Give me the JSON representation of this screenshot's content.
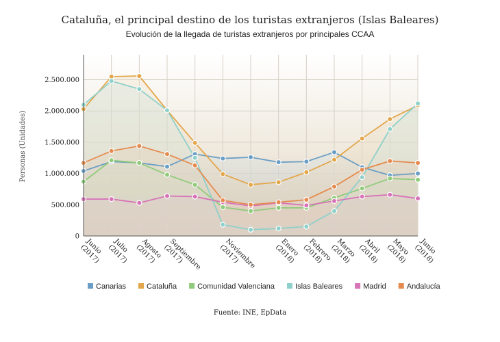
{
  "chart_data": {
    "type": "area",
    "title": "Cataluña, el principal destino de los turistas extranjeros (Islas Baleares)",
    "subtitle": "Evolución de la llegada de turistas extranjeros por principales CCAA",
    "ylabel": "Personas (Unidades)",
    "source": "Fuente: INE, EpData",
    "ylim": [
      0,
      2900000
    ],
    "yticks": [
      0,
      500000,
      1000000,
      1500000,
      2000000,
      2500000
    ],
    "ytick_labels": [
      "0",
      "500.000",
      "1.000.000",
      "1.500.000",
      "2.000.000",
      "2.500.000"
    ],
    "grid": true,
    "legend_position": "bottom",
    "x_count": 13,
    "x_tick_labels": [
      {
        "index": 0,
        "lines": [
          "Junio",
          "(2017)"
        ]
      },
      {
        "index": 1,
        "lines": [
          "Julio",
          "(2017)"
        ]
      },
      {
        "index": 2,
        "lines": [
          "Agosto",
          "(2017)"
        ]
      },
      {
        "index": 3,
        "lines": [
          "Septiembre",
          "(2017)"
        ]
      },
      {
        "index": 5,
        "lines": [
          "Noviembre",
          "(2017)"
        ]
      },
      {
        "index": 7,
        "lines": [
          "Enero",
          "(2018)"
        ]
      },
      {
        "index": 8,
        "lines": [
          "Febrero",
          "(2018)"
        ]
      },
      {
        "index": 9,
        "lines": [
          "Marzo",
          "(2018)"
        ]
      },
      {
        "index": 10,
        "lines": [
          "Abril",
          "(2018)"
        ]
      },
      {
        "index": 11,
        "lines": [
          "Mayo",
          "(2018)"
        ]
      },
      {
        "index": 12,
        "lines": [
          "Junio",
          "(2018)"
        ]
      }
    ],
    "series": [
      {
        "name": "Canarias",
        "color": "#6a9ec5",
        "fill": "#cfe1ee",
        "values": [
          1040000,
          1190000,
          1170000,
          1110000,
          1310000,
          1240000,
          1260000,
          1180000,
          1190000,
          1340000,
          1100000,
          970000,
          1000000
        ]
      },
      {
        "name": "Cataluña",
        "color": "#e3a64a",
        "fill": "#eddcbc",
        "values": [
          2030000,
          2550000,
          2560000,
          2010000,
          1490000,
          990000,
          820000,
          860000,
          1020000,
          1220000,
          1560000,
          1870000,
          2090000
        ]
      },
      {
        "name": "Comunidad Valenciana",
        "color": "#8fcb7a",
        "fill": "#d3e6c4",
        "values": [
          870000,
          1210000,
          1170000,
          980000,
          820000,
          460000,
          400000,
          450000,
          450000,
          610000,
          760000,
          920000,
          900000
        ]
      },
      {
        "name": "Islas Baleares",
        "color": "#8fd0ca",
        "fill": "#c9e3de",
        "values": [
          2100000,
          2480000,
          2350000,
          2010000,
          1250000,
          180000,
          100000,
          120000,
          150000,
          400000,
          940000,
          1710000,
          2120000
        ]
      },
      {
        "name": "Madrid",
        "color": "#d774b8",
        "fill": "#e7c6d8",
        "values": [
          590000,
          590000,
          530000,
          640000,
          630000,
          540000,
          480000,
          530000,
          490000,
          560000,
          630000,
          660000,
          600000
        ]
      },
      {
        "name": "Andalucía",
        "color": "#e68b4f",
        "fill": "#e9cbb3",
        "values": [
          1170000,
          1360000,
          1440000,
          1310000,
          1130000,
          570000,
          500000,
          540000,
          580000,
          790000,
          1060000,
          1200000,
          1170000
        ]
      }
    ]
  }
}
